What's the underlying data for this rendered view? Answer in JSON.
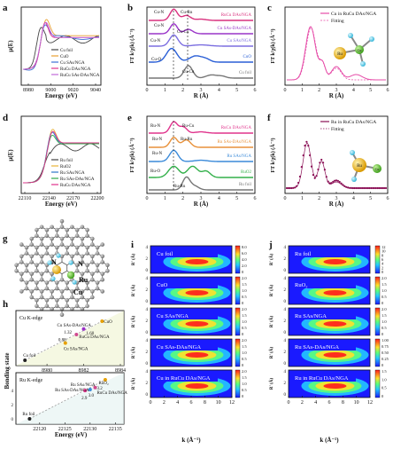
{
  "panel_letters": [
    "a",
    "b",
    "c",
    "d",
    "e",
    "f",
    "g",
    "h",
    "i",
    "j"
  ],
  "axes": {
    "energy": "Energy (eV)",
    "mu": "μ(E)",
    "R": "R (Å)",
    "FT": "FT k²χ(k)",
    "k": "k (Å⁻¹)",
    "Rp": "R' (Å)",
    "A3": "(Å⁻³)",
    "bonding": "Bonding state"
  },
  "chart_data": [
    {
      "id": "a",
      "type": "line",
      "series_names": [
        "Cu foil",
        "CuO",
        "Cu SAs/NGA",
        "RuCu DAs/NGA",
        "RuCu SAs-DAs/NGA"
      ],
      "colors": [
        "#444444",
        "#e8a030",
        "#3b6fd4",
        "#e0338c",
        "#c06ad8"
      ],
      "xticks": [
        "8980",
        "9000",
        "9020",
        "9040"
      ]
    },
    {
      "id": "b",
      "type": "line",
      "series_names": [
        "RuCu DAs/NGA",
        "Cu SAs-DAs/NGA",
        "Cu SAs/NGA",
        "CuO",
        "Cu foil"
      ],
      "colors": [
        "#d9317e",
        "#9a35c8",
        "#7b6ee0",
        "#2a5fd6",
        "#777777"
      ],
      "annotations": [
        "Cu-N",
        "Cu-Ru",
        "Cu-N",
        "Cu-Cu",
        "Cu-N",
        "Cu-O",
        "Cu-Cu"
      ],
      "xticks": [
        "0",
        "1",
        "2",
        "3",
        "4",
        "5",
        "6"
      ]
    },
    {
      "id": "c",
      "type": "line",
      "series_names": [
        "Cu in RuCu DAs/NGA",
        "Fitting"
      ],
      "colors": [
        "#e64ca8",
        "#e64ca8"
      ],
      "xticks": [
        "0",
        "1",
        "2",
        "3",
        "4",
        "5",
        "6"
      ],
      "atom_labels": [
        "Ru",
        "Cu"
      ]
    },
    {
      "id": "d",
      "type": "line",
      "series_names": [
        "Ru foil",
        "RuO2",
        "Ru SAs/NGA",
        "Ru SAs-DAs/NGA",
        "RuCu DAs/NGA"
      ],
      "colors": [
        "#444444",
        "#e8b33a",
        "#2b74c9",
        "#2fa84a",
        "#e0338c"
      ],
      "xticks": [
        "22110",
        "22140",
        "22170",
        "22200"
      ]
    },
    {
      "id": "e",
      "type": "line",
      "series_names": [
        "RuCu DAs/NGA",
        "Ru SAs-DAs/NGA",
        "Ru SAs/NGA",
        "RuO2",
        "Ru foil"
      ],
      "colors": [
        "#e0338c",
        "#e8913a",
        "#3a8ad9",
        "#33b04a",
        "#777777"
      ],
      "annotations": [
        "Ru-N",
        "Ru-Cu",
        "Ru-N",
        "Ru-Ru",
        "Ru-N",
        "Ru-O",
        "Ru-Ru"
      ],
      "xticks": [
        "0",
        "1",
        "2",
        "3",
        "4",
        "5",
        "6"
      ]
    },
    {
      "id": "f",
      "type": "line",
      "series_names": [
        "Ru in RuCu DAs/NGA",
        "Fitting"
      ],
      "colors": [
        "#8a0f55",
        "#8a0f55"
      ],
      "xticks": [
        "0",
        "1",
        "2",
        "3",
        "4",
        "5",
        "6"
      ],
      "atom_labels": [
        "Ru",
        "Cu"
      ]
    },
    {
      "id": "h",
      "type": "scatter",
      "top": {
        "label": "Cu K-edge",
        "points": [
          {
            "name": "Cu foil",
            "x": 8978.8,
            "y": 0
          },
          {
            "name": "Cu SAs/NGA",
            "x": 8981.0,
            "y": 0.88
          },
          {
            "name": "RuCu DAs/NGA",
            "x": 8981.6,
            "y": 1.32
          },
          {
            "name": "Cu SAs-DAs/NGA",
            "x": 8982.0,
            "y": 1.6
          },
          {
            "name": "CuO",
            "x": 8983.0,
            "y": 2.0
          }
        ],
        "value_labels": [
          "0.88",
          "1.32",
          "1.60"
        ],
        "xticks": [
          "8980",
          "8982",
          "8984"
        ]
      },
      "bottom": {
        "label": "Ru K-edge",
        "points": [
          {
            "name": "Ru foil",
            "x": 22118,
            "y": 0
          },
          {
            "name": "Ru SAs-DAs/NGA",
            "x": 22129,
            "y": 2.9
          },
          {
            "name": "Ru SAs/NGA",
            "x": 22130,
            "y": 3.0
          },
          {
            "name": "RuCu DAs/NGA",
            "x": 22131,
            "y": 3.2
          },
          {
            "name": "RuO2",
            "x": 22133,
            "y": 4.0
          }
        ],
        "value_labels": [
          "3.0",
          "3.2",
          "2.9"
        ],
        "xticks": [
          "22120",
          "22125",
          "22130",
          "22135"
        ]
      },
      "yticks": [
        "0",
        "2",
        "4"
      ]
    },
    {
      "id": "i",
      "type": "heatmap",
      "panels": [
        {
          "label": "Cu foil",
          "cbar": [
            "8.0",
            "6.0",
            "4.0",
            "2.0",
            "0"
          ]
        },
        {
          "label": "CuO",
          "cbar": [
            "2.0",
            "1.5",
            "1.0",
            "0.5",
            "0"
          ]
        },
        {
          "label": "Cu SAs/NGA",
          "cbar": [
            "2.0",
            "1.5",
            "1.0",
            "0.5",
            "0"
          ]
        },
        {
          "label": "Cu SAs-DAs/NGA",
          "cbar": [
            "2.0",
            "1.5",
            "1.0",
            "0.5",
            "0"
          ]
        },
        {
          "label": "Cu in RuCu DAs/NGA",
          "cbar": [
            "2.0",
            "1.5",
            "1.0",
            "0.5",
            "0"
          ]
        }
      ],
      "xticks": [
        "0",
        "2",
        "4",
        "6",
        "8",
        "10",
        "12"
      ]
    },
    {
      "id": "j",
      "type": "heatmap",
      "panels": [
        {
          "label": "Ru foil",
          "cbar": [
            "12",
            "10",
            "8",
            "6",
            "4",
            "2",
            "0"
          ]
        },
        {
          "label": "RuO₂",
          "cbar": [
            "2.0",
            "1.5",
            "1.0",
            "0.5",
            "0"
          ]
        },
        {
          "label": "Ru SAs/NGA",
          "cbar": [
            "2.0",
            "1.5",
            "1.0",
            "0.5",
            "0"
          ]
        },
        {
          "label": "Ru SAs-DAs/NGA",
          "cbar": [
            "1.00",
            "0.75",
            "0.50",
            "0.25",
            "0"
          ]
        },
        {
          "label": "Ru in RuCu DAs/NGA",
          "cbar": [
            "1.5",
            "1.0",
            "0.5",
            "0"
          ]
        }
      ],
      "xticks": [
        "0",
        "2",
        "4",
        "6",
        "8",
        "10",
        "12"
      ]
    }
  ],
  "structure_labels": {
    "n1": "N",
    "n2": "N",
    "ru": "Ru",
    "cu": "Cu"
  }
}
